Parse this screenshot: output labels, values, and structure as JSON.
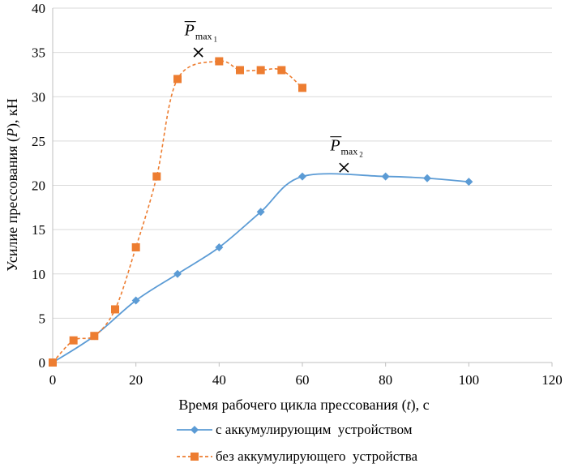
{
  "chart_data": {
    "type": "line",
    "xlabel": "Время рабочего цикла прессования (t), с",
    "xlabel_parts": [
      "Время рабочего цикла прессования (",
      "t",
      "), с"
    ],
    "ylabel": "Усилие прессования (P), кН",
    "ylabel_parts": [
      "Усилие прессования (",
      "P",
      "), кН"
    ],
    "xlim": [
      0,
      120
    ],
    "ylim": [
      0,
      40
    ],
    "xticks": [
      0,
      20,
      40,
      60,
      80,
      100,
      120
    ],
    "yticks": [
      0,
      5,
      10,
      15,
      20,
      25,
      30,
      35,
      40
    ],
    "grid": "horizontal",
    "legend_position": "bottom",
    "series": [
      {
        "name": "с аккумулирующим  устройством",
        "color": "#5B9BD5",
        "marker": "diamond",
        "line": "solid",
        "x": [
          0,
          10,
          20,
          30,
          40,
          50,
          60,
          80,
          90,
          100
        ],
        "y": [
          0,
          3,
          7,
          10,
          13,
          17,
          21,
          21,
          20.8,
          20.4
        ]
      },
      {
        "name": "без аккумулирующего  устройства",
        "color": "#ED7D31",
        "marker": "square",
        "line": "dashed",
        "x": [
          0,
          5,
          10,
          15,
          20,
          25,
          30,
          40,
          45,
          50,
          55,
          60
        ],
        "y": [
          0,
          2.5,
          3,
          6,
          13,
          21,
          32,
          34,
          33,
          33,
          33,
          31
        ]
      }
    ],
    "annotations": [
      {
        "base": "P",
        "sub": "max",
        "subsub": "1",
        "x": 35,
        "y": 35,
        "marker": "x"
      },
      {
        "base": "P",
        "sub": "max",
        "subsub": "2",
        "x": 70,
        "y": 22,
        "marker": "x"
      }
    ]
  }
}
